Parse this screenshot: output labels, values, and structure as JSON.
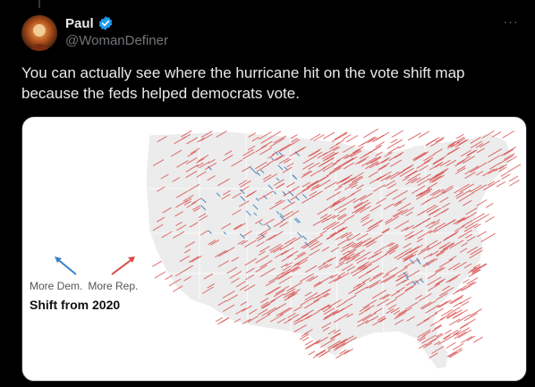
{
  "post": {
    "author_name": "Paul",
    "handle": "@WomanDefiner",
    "more_icon": "···",
    "text": "You can actually see where the hurricane hit on the vote shift map because the feds helped democrats vote."
  },
  "map": {
    "legend": {
      "dem_label": "More Dem.",
      "rep_label": "More Rep.",
      "title": "Shift from 2020"
    },
    "colors": {
      "dem": "#3b82c4",
      "rep": "#d84a4a",
      "land": "#ececec",
      "border": "#ffffff"
    }
  },
  "colors": {
    "verified": "#1d9bf0",
    "text": "#e7e9ea",
    "muted": "#71767b"
  }
}
